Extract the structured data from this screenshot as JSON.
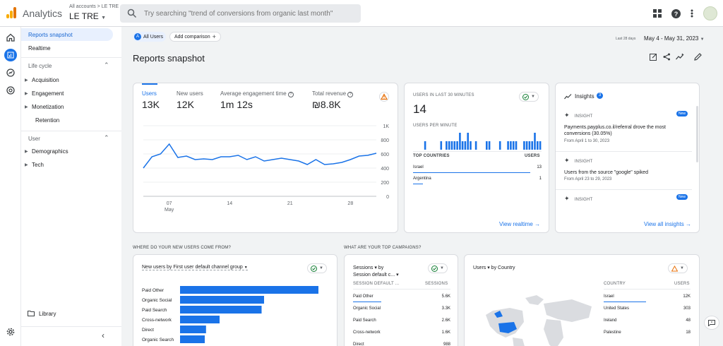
{
  "app": {
    "title": "Analytics",
    "account_line": "All accounts > LE TRE",
    "account_name": "LE TRE"
  },
  "search": {
    "placeholder": "Try searching \"trend of conversions from organic last month\""
  },
  "colors": {
    "accent": "#1a73e8",
    "bar": "#1a73e8",
    "logo": [
      "#f9ab00",
      "#e37400",
      "#e37400"
    ]
  },
  "nav": {
    "reports_snapshot": "Reports snapshot",
    "realtime": "Realtime",
    "life_cycle": "Life cycle",
    "lifecycle_items": [
      "Acquisition",
      "Engagement",
      "Monetization",
      "Retention"
    ],
    "user": "User",
    "user_items": [
      "Demographics",
      "Tech"
    ],
    "library": "Library"
  },
  "header": {
    "segment_letter": "A",
    "segment": "All Users",
    "add_comparison": "Add comparison",
    "page_title": "Reports snapshot",
    "range_label": "Last 28 days",
    "range": "May 4 - May 31, 2023"
  },
  "overview": {
    "metrics": [
      {
        "label": "Users",
        "value": "13K"
      },
      {
        "label": "New users",
        "value": "12K"
      },
      {
        "label": "Average engagement time",
        "value": "1m 12s"
      },
      {
        "label": "Total revenue",
        "value": "₪8.8K"
      }
    ],
    "y_ticks": [
      "1K",
      "800",
      "600",
      "400",
      "200",
      "0"
    ],
    "x_ticks": [
      "07",
      "14",
      "21",
      "28"
    ],
    "x_month": "May"
  },
  "chart_data": [
    {
      "type": "line",
      "x": [
        "May 4",
        "May 5",
        "May 6",
        "May 7",
        "May 8",
        "May 9",
        "May 10",
        "May 11",
        "May 12",
        "May 13",
        "May 14",
        "May 15",
        "May 16",
        "May 17",
        "May 18",
        "May 19",
        "May 20",
        "May 21",
        "May 22",
        "May 23",
        "May 24",
        "May 25",
        "May 26",
        "May 27",
        "May 28",
        "May 29",
        "May 30",
        "May 31"
      ],
      "series": [
        {
          "name": "Users",
          "values": [
            400,
            560,
            600,
            740,
            550,
            570,
            520,
            530,
            520,
            560,
            560,
            580,
            520,
            560,
            500,
            520,
            540,
            520,
            500,
            450,
            520,
            450,
            460,
            480,
            520,
            570,
            580,
            610
          ]
        }
      ],
      "ylim": [
        0,
        1000
      ]
    },
    {
      "type": "bar",
      "title": "USERS PER MINUTE",
      "values": [
        0,
        0,
        0,
        0,
        1,
        0,
        0,
        0,
        0,
        0,
        1,
        0,
        1,
        1,
        1,
        1,
        1,
        2,
        1,
        1,
        2,
        1,
        0,
        1,
        0,
        0,
        0,
        1,
        1,
        0,
        0,
        0,
        1,
        0,
        0,
        1,
        1,
        1,
        1,
        0,
        0,
        1,
        1,
        1,
        1,
        2,
        1,
        1
      ],
      "ylim": [
        0,
        2
      ]
    },
    {
      "type": "bar",
      "title": "New users by First user default channel group",
      "categories": [
        "Paid Other",
        "Organic Social",
        "Paid Search",
        "Cross-network",
        "Direct",
        "Organic Search"
      ],
      "values": [
        5600,
        3400,
        3300,
        1600,
        1050,
        1000
      ]
    }
  ],
  "realtime": {
    "title": "USERS IN LAST 30 MINUTES",
    "value": "14",
    "per_minute": "USERS PER MINUTE",
    "countries_hdr": "TOP COUNTRIES",
    "users_hdr": "USERS",
    "rows": [
      {
        "country": "Israel",
        "users": "13"
      },
      {
        "country": "Argentina",
        "users": "1"
      }
    ],
    "view_link": "View realtime"
  },
  "insights": {
    "title": "Insights",
    "count": "3",
    "items": [
      {
        "tag": "INSIGHT",
        "badge": "New",
        "text": "Payments.payplus.co.il/referral drove the most conversions (30.05%)",
        "date": "From April 1 to 30, 2023"
      },
      {
        "tag": "INSIGHT",
        "badge": "",
        "text": "Users from the source \"google\" spiked",
        "date": "From April 23 to 29, 2023"
      },
      {
        "tag": "INSIGHT",
        "badge": "New",
        "text": "",
        "date": ""
      }
    ],
    "view_link": "View all insights"
  },
  "new_users": {
    "section": "WHERE DO YOUR NEW USERS COME FROM?",
    "dropdown": "New users by First user default channel group"
  },
  "campaigns": {
    "section": "WHAT ARE YOUR TOP CAMPAIGNS?",
    "title_line1": "Sessions ▾  by",
    "title_line2": "Session default c... ▾",
    "col1": "SESSION DEFAULT ...",
    "col2": "SESSIONS",
    "rows": [
      {
        "name": "Paid Other",
        "value": "5.6K"
      },
      {
        "name": "Organic Social",
        "value": "3.3K"
      },
      {
        "name": "Paid Search",
        "value": "2.6K"
      },
      {
        "name": "Cross-network",
        "value": "1.6K"
      },
      {
        "name": "Direct",
        "value": "988"
      }
    ]
  },
  "country": {
    "title": "Users ▾  by Country",
    "col1": "COUNTRY",
    "col2": "USERS",
    "rows": [
      {
        "name": "Israel",
        "value": "12K"
      },
      {
        "name": "United States",
        "value": "303"
      },
      {
        "name": "Ireland",
        "value": "48"
      },
      {
        "name": "Palestine",
        "value": "18"
      }
    ]
  }
}
